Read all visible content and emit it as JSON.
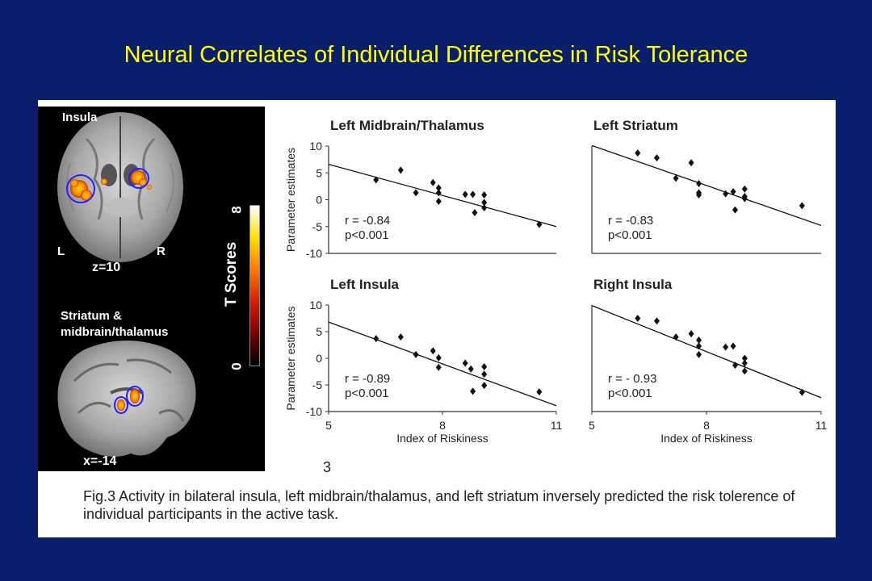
{
  "title": "Neural Correlates of Individual Differences in Risk Tolerance",
  "brain": {
    "axial_label": "Insula",
    "left_label": "L",
    "right_label": "R",
    "z_label": "z=10",
    "sagittal_label_line1": "Striatum &",
    "sagittal_label_line2": "midbrain/thalamus",
    "x_label": "x=-14",
    "colorbar_label": "T Scores",
    "colorbar_max": "8",
    "colorbar_min": "0",
    "colorbar_colors": [
      "#000000",
      "#7a0000",
      "#d81e00",
      "#ff7a00",
      "#ffe000",
      "#ffffff"
    ]
  },
  "figure_number": "3",
  "caption": "Fig.3  Activity in bilateral insula, left midbrain/thalamus,  and left striatum inversely predicted the risk tolerence of individual participants in the active task.",
  "chart_data": [
    {
      "type": "scatter",
      "title": "Left Midbrain/Thalamus",
      "xlabel": "",
      "ylabel": "Parameter estimates",
      "xlim": [
        5,
        11
      ],
      "ylim": [
        -10,
        10
      ],
      "yticks": [
        "10",
        "5",
        "0",
        "-5",
        "-10"
      ],
      "stats_r": "r = -0.84",
      "stats_p": "p<0.001",
      "points": [
        [
          6.25,
          3.7
        ],
        [
          6.9,
          5.5
        ],
        [
          7.3,
          1.3
        ],
        [
          7.75,
          3.2
        ],
        [
          7.9,
          2.2
        ],
        [
          7.9,
          1.3
        ],
        [
          7.9,
          -0.3
        ],
        [
          8.6,
          1.0
        ],
        [
          8.8,
          1.0
        ],
        [
          8.85,
          -2.4
        ],
        [
          9.1,
          0.9
        ],
        [
          9.1,
          -0.5
        ],
        [
          9.1,
          -1.5
        ],
        [
          10.55,
          -4.6
        ]
      ],
      "fit": [
        [
          5,
          6.6
        ],
        [
          11,
          -5.0
        ]
      ]
    },
    {
      "type": "scatter",
      "title": "Left Striatum",
      "xlabel": "",
      "ylabel": "",
      "xlim": [
        5,
        11
      ],
      "ylim": [
        -10,
        10
      ],
      "stats_r": "r = -0.83",
      "stats_p": "p<0.001",
      "points": [
        [
          6.2,
          8.7
        ],
        [
          6.7,
          7.8
        ],
        [
          7.2,
          4.0
        ],
        [
          7.6,
          6.9
        ],
        [
          7.8,
          3.0
        ],
        [
          7.8,
          1.3
        ],
        [
          7.8,
          0.9
        ],
        [
          8.5,
          1.1
        ],
        [
          8.7,
          1.5
        ],
        [
          8.75,
          -1.9
        ],
        [
          9.0,
          2.0
        ],
        [
          9.0,
          0.6
        ],
        [
          9.0,
          0.2
        ],
        [
          10.5,
          -1.1
        ]
      ],
      "fit": [
        [
          5,
          10.1
        ],
        [
          11,
          -4.8
        ]
      ]
    },
    {
      "type": "scatter",
      "title": "Left Insula",
      "xlabel": "Index of Riskiness",
      "ylabel": "Parameter estimates",
      "xlim": [
        5,
        11
      ],
      "ylim": [
        -10,
        10
      ],
      "xticks": [
        "5",
        "8",
        "11"
      ],
      "yticks": [
        "10",
        "5",
        "0",
        "-5",
        "-10"
      ],
      "stats_r": "r = -0.89",
      "stats_p": "p<0.001",
      "points": [
        [
          6.25,
          3.7
        ],
        [
          6.9,
          4.0
        ],
        [
          7.3,
          0.7
        ],
        [
          7.75,
          1.4
        ],
        [
          7.9,
          0.1
        ],
        [
          7.9,
          -1.7
        ],
        [
          8.6,
          -0.9
        ],
        [
          8.75,
          -2.0
        ],
        [
          8.8,
          -6.2
        ],
        [
          9.1,
          -1.6
        ],
        [
          9.1,
          -3.0
        ],
        [
          9.1,
          -5.1
        ],
        [
          10.55,
          -6.3
        ]
      ],
      "fit": [
        [
          5,
          6.8
        ],
        [
          11,
          -8.9
        ]
      ]
    },
    {
      "type": "scatter",
      "title": "Right Insula",
      "xlabel": "Index of Riskiness",
      "ylabel": "",
      "xlim": [
        5,
        11
      ],
      "ylim": [
        -10,
        10
      ],
      "xticks": [
        "5",
        "8",
        "11"
      ],
      "stats_r": "r = - 0.93",
      "stats_p": "p<0.001",
      "points": [
        [
          6.2,
          7.5
        ],
        [
          6.7,
          7.0
        ],
        [
          7.2,
          4.0
        ],
        [
          7.6,
          4.6
        ],
        [
          7.8,
          3.4
        ],
        [
          7.8,
          2.3
        ],
        [
          7.8,
          0.7
        ],
        [
          8.5,
          2.1
        ],
        [
          8.7,
          2.3
        ],
        [
          8.75,
          -1.3
        ],
        [
          9.0,
          0.0
        ],
        [
          9.0,
          -0.9
        ],
        [
          9.0,
          -2.4
        ],
        [
          10.5,
          -6.4
        ]
      ],
      "fit": [
        [
          5,
          9.9
        ],
        [
          11,
          -7.4
        ]
      ]
    }
  ]
}
